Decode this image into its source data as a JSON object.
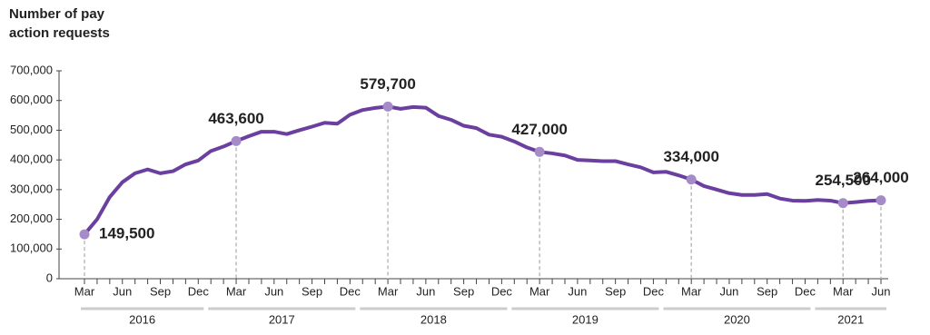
{
  "chart_data": {
    "type": "line",
    "ylabel": [
      "Number of pay",
      "action requests"
    ],
    "categories": [
      "Mar",
      null,
      null,
      "Jun",
      null,
      null,
      "Sep",
      null,
      null,
      "Dec",
      null,
      null,
      "Mar",
      null,
      null,
      "Jun",
      null,
      null,
      "Sep",
      null,
      null,
      "Dec",
      null,
      null,
      "Mar",
      null,
      null,
      "Jun",
      null,
      null,
      "Sep",
      null,
      null,
      "Dec",
      null,
      null,
      "Mar",
      null,
      null,
      "Jun",
      null,
      null,
      "Sep",
      null,
      null,
      "Dec",
      null,
      null,
      "Mar",
      null,
      null,
      "Jun",
      null,
      null,
      "Sep",
      null,
      null,
      "Dec",
      null,
      null,
      "Mar",
      null,
      null,
      "Jun"
    ],
    "x_groups": [
      "2016",
      "2017",
      "2018",
      "2019",
      "2020",
      "2021"
    ],
    "series": [
      {
        "name": "Number of pay action requests",
        "color": "#6b3fa0",
        "marker_color": "#a58cc8",
        "values": [
          149500,
          200000,
          275000,
          325000,
          355000,
          368000,
          355000,
          362000,
          385000,
          398000,
          430000,
          445000,
          463600,
          480000,
          495000,
          495000,
          487000,
          500000,
          512000,
          525000,
          522000,
          552000,
          568000,
          575000,
          579700,
          572000,
          578000,
          576000,
          548000,
          535000,
          515000,
          507000,
          485000,
          478000,
          462000,
          442000,
          427000,
          422000,
          415000,
          400000,
          398000,
          396000,
          396000,
          385000,
          375000,
          358000,
          360000,
          348000,
          334000,
          312000,
          300000,
          288000,
          282000,
          282000,
          285000,
          270000,
          263000,
          262000,
          265000,
          263000,
          254500,
          258000,
          262000,
          264000
        ],
        "value_labels": [
          "149,500",
          null,
          null,
          null,
          null,
          null,
          null,
          null,
          null,
          null,
          null,
          null,
          "463,600",
          null,
          null,
          null,
          null,
          null,
          null,
          null,
          null,
          null,
          null,
          null,
          "579,700",
          null,
          null,
          null,
          null,
          null,
          null,
          null,
          null,
          null,
          null,
          null,
          "427,000",
          null,
          null,
          null,
          null,
          null,
          null,
          null,
          null,
          null,
          null,
          null,
          "334,000",
          null,
          null,
          null,
          null,
          null,
          null,
          null,
          null,
          null,
          null,
          null,
          "254,500",
          null,
          null,
          "264,000"
        ]
      }
    ],
    "ylim": [
      0,
      700000
    ],
    "yticks": [
      0,
      {
        "value": 100000,
        "label": "100,000"
      },
      {
        "value": 200000,
        "label": "200,000"
      },
      {
        "value": 300000,
        "label": "300,000"
      },
      {
        "value": 400000,
        "label": "400,000"
      },
      {
        "value": 500000,
        "label": "500,000"
      },
      {
        "value": 600000,
        "label": "600,000"
      },
      {
        "value": 700000,
        "label": "700,000"
      }
    ]
  }
}
